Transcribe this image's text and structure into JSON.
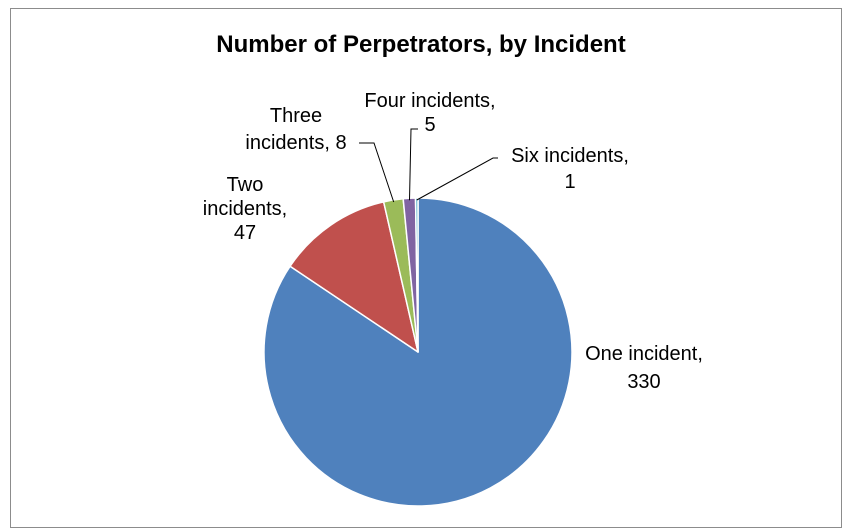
{
  "chart_data": {
    "type": "pie",
    "title": "Number of Perpetrators, by Incident",
    "categories": [
      "One incident",
      "Two incidents",
      "Three incidents",
      "Four incidents",
      "Six incidents"
    ],
    "values": [
      330,
      47,
      8,
      5,
      1
    ],
    "colors": [
      "#4f81bd",
      "#c0504d",
      "#9bbb59",
      "#8064a2",
      "#4bacc6"
    ],
    "slice_border_color": "#ffffff",
    "leader_line_color": "#000000",
    "start_angle_deg": 0,
    "direction": "clockwise",
    "legend": "none",
    "data_labels": [
      {
        "lines": [
          "One incident,",
          "330"
        ]
      },
      {
        "lines": [
          "Two",
          "incidents,",
          "47"
        ]
      },
      {
        "lines": [
          "Three",
          "incidents, 8"
        ]
      },
      {
        "lines": [
          "Four incidents,",
          "5"
        ]
      },
      {
        "lines": [
          "Six incidents,",
          "1"
        ]
      }
    ]
  }
}
